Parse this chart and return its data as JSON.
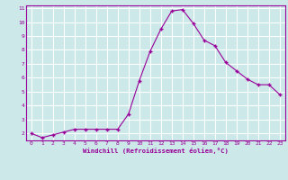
{
  "x": [
    0,
    1,
    2,
    3,
    4,
    5,
    6,
    7,
    8,
    9,
    10,
    11,
    12,
    13,
    14,
    15,
    16,
    17,
    18,
    19,
    20,
    21,
    22,
    23
  ],
  "y": [
    2.0,
    1.7,
    1.9,
    2.1,
    2.3,
    2.3,
    2.3,
    2.3,
    2.3,
    3.4,
    5.8,
    7.9,
    9.5,
    10.8,
    10.9,
    9.9,
    8.7,
    8.3,
    7.1,
    6.5,
    5.9,
    5.5,
    5.5,
    4.8
  ],
  "xlabel": "Windchill (Refroidissement éolien,°C)",
  "ylim": [
    1.5,
    11.2
  ],
  "xlim": [
    -0.5,
    23.5
  ],
  "yticks": [
    2,
    3,
    4,
    5,
    6,
    7,
    8,
    9,
    10,
    11
  ],
  "xticks": [
    0,
    1,
    2,
    3,
    4,
    5,
    6,
    7,
    8,
    9,
    10,
    11,
    12,
    13,
    14,
    15,
    16,
    17,
    18,
    19,
    20,
    21,
    22,
    23
  ],
  "line_color": "#990099",
  "marker": "P",
  "bg_color": "#cce8e8",
  "grid_color": "#ffffff",
  "label_color": "#990099",
  "tick_color": "#990099"
}
